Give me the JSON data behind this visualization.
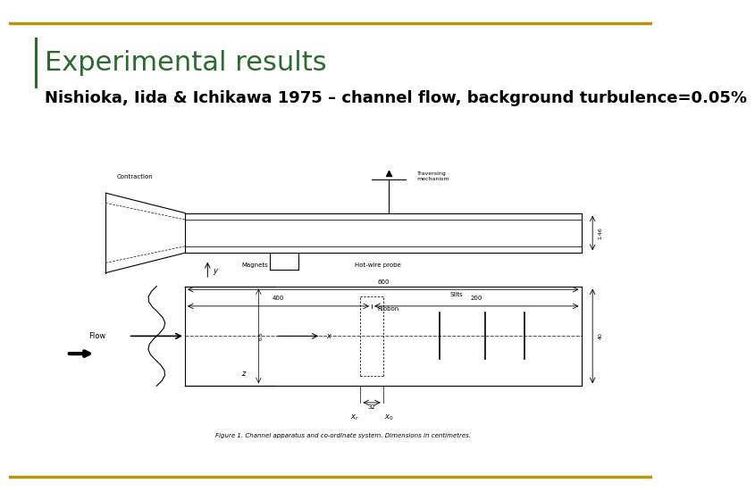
{
  "title": "Experimental results",
  "title_color": "#2d6a2d",
  "title_fontsize": 22,
  "subtitle": "Nishioka, Iida & Ichikawa 1975 – channel flow, background turbulence=0.05%",
  "subtitle_fontsize": 13,
  "subtitle_color": "#000000",
  "border_color": "#b8960c",
  "border_linewidth": 2.5,
  "bg_color": "#ffffff",
  "left_bar_color": "#b8960c",
  "left_bar_width": 0.005,
  "figure_caption": "Figure 1. Channel apparatus and co-ordinate system. Dimensions in centimetres.",
  "fig_width": 7.2,
  "fig_height": 5.4
}
